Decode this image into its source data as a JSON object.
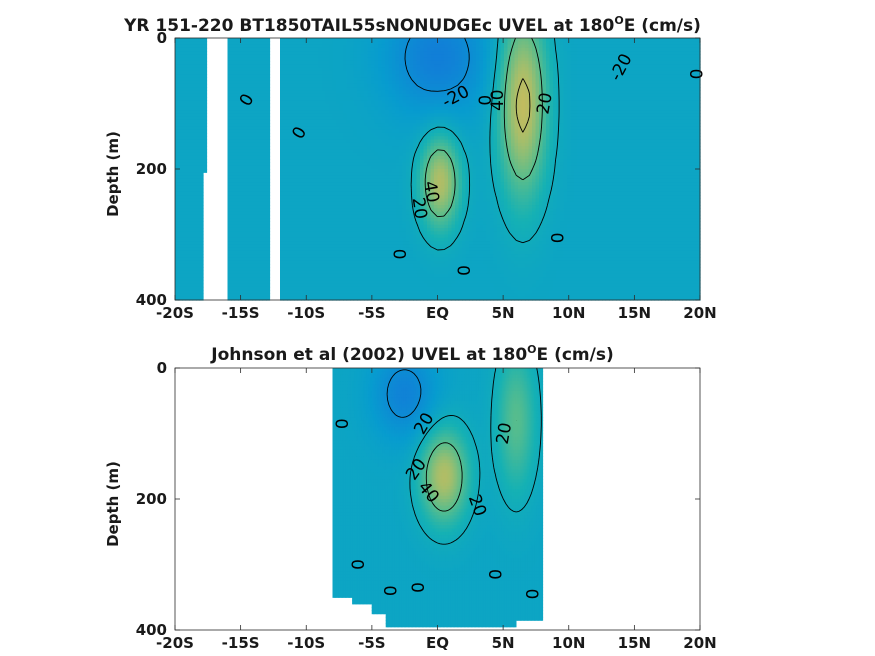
{
  "chart_data": [
    {
      "type": "heatmap",
      "title_main": "YR 151-220 BT1850TAIL55sNONUDGEc UVEL at 180",
      "title_sup": "O",
      "title_end": "E (cm/s)",
      "ylabel": "Depth (m)",
      "xlim": [
        -20,
        20
      ],
      "ylim": [
        0,
        400
      ],
      "y_reversed": true,
      "x_ticks": [
        -20,
        -15,
        -10,
        -5,
        0,
        5,
        10,
        15,
        20
      ],
      "x_tick_labels": [
        "-20S",
        "-15S",
        "-10S",
        "-5S",
        "EQ",
        "5N",
        "10N",
        "15N",
        "20N"
      ],
      "y_ticks": [
        0,
        200,
        400
      ],
      "y_tick_labels": [
        "0",
        "200",
        "400"
      ],
      "data_coverage": {
        "lat_range": [
          -20,
          20
        ],
        "gaps_lat": [
          [
            -17.5,
            -15.9
          ],
          [
            -12.9,
            -12.1
          ]
        ],
        "gap_depth_ranges": [
          [
            0,
            400
          ],
          [
            0,
            400
          ]
        ],
        "gap_lower_start_lat": -17.9,
        "gap_lower_start_depth": 205
      },
      "background_value": -5,
      "features": [
        {
          "name": "south-equatorial-current",
          "center": [
            0,
            30
          ],
          "amplitude": -22,
          "width": [
            4,
            90
          ]
        },
        {
          "name": "north-equatorial-countercurrent",
          "center": [
            6.5,
            100
          ],
          "amplitude": 50,
          "width": [
            1.8,
            140
          ]
        },
        {
          "name": "equatorial-undercurrent",
          "center": [
            0.2,
            220
          ],
          "amplitude": 45,
          "width": [
            1.5,
            70
          ]
        }
      ],
      "contour_labels": [
        {
          "text": "0",
          "lat": -14.5,
          "depth": 95,
          "angle": -60
        },
        {
          "text": "0",
          "lat": -10.5,
          "depth": 145,
          "angle": -60
        },
        {
          "text": "-20",
          "lat": 1.4,
          "depth": 90,
          "angle": -28
        },
        {
          "text": "0",
          "lat": 3.7,
          "depth": 95,
          "angle": -90
        },
        {
          "text": "40",
          "lat": 4.6,
          "depth": 95,
          "angle": -90
        },
        {
          "text": "20",
          "lat": 8.2,
          "depth": 100,
          "angle": -80
        },
        {
          "text": "-20",
          "lat": 14,
          "depth": 45,
          "angle": -62
        },
        {
          "text": "0",
          "lat": 19.8,
          "depth": 55,
          "angle": -90
        },
        {
          "text": "40",
          "lat": -0.5,
          "depth": 235,
          "angle": 80
        },
        {
          "text": "20",
          "lat": -1.4,
          "depth": 260,
          "angle": 82
        },
        {
          "text": "0",
          "lat": -2.8,
          "depth": 330,
          "angle": -90
        },
        {
          "text": "0",
          "lat": 2.1,
          "depth": 355,
          "angle": -90
        },
        {
          "text": "0",
          "lat": 9.2,
          "depth": 305,
          "angle": -90
        }
      ]
    },
    {
      "type": "heatmap",
      "title_main": "Johnson et al (2002) UVEL at 180",
      "title_sup": "O",
      "title_end": "E (cm/s)",
      "ylabel": "Depth (m)",
      "xlim": [
        -20,
        20
      ],
      "ylim": [
        0,
        400
      ],
      "y_reversed": true,
      "x_ticks": [
        -20,
        -15,
        -10,
        -5,
        0,
        5,
        10,
        15,
        20
      ],
      "x_tick_labels": [
        "-20S",
        "-15S",
        "-10S",
        "-5S",
        "EQ",
        "5N",
        "10N",
        "15N",
        "20N"
      ],
      "y_ticks": [
        0,
        200,
        400
      ],
      "y_tick_labels": [
        "0",
        "200",
        "400"
      ],
      "data_coverage": {
        "lat_range": [
          -8,
          8
        ],
        "bottom_cutoff": [
          [
            -8,
            335
          ],
          [
            -6.5,
            350
          ],
          [
            -5,
            360
          ],
          [
            -4,
            375
          ],
          [
            -3,
            395
          ],
          [
            5,
            395
          ],
          [
            6,
            385
          ],
          [
            8,
            370
          ]
        ]
      },
      "background_value": -5,
      "features": [
        {
          "name": "south-equatorial-current",
          "center": [
            -2.5,
            40
          ],
          "amplitude": -20,
          "width": [
            2.5,
            70
          ]
        },
        {
          "name": "equatorial-undercurrent",
          "center": [
            0.5,
            165
          ],
          "amplitude": 45,
          "width": [
            1.8,
            70
          ]
        },
        {
          "name": "north-equatorial-countercurrent",
          "center": [
            6,
            80
          ],
          "amplitude": 25,
          "width": [
            1.5,
            110
          ]
        }
      ],
      "contour_labels": [
        {
          "text": "0",
          "lat": -7.2,
          "depth": 85,
          "angle": -90
        },
        {
          "text": "20",
          "lat": -1.0,
          "depth": 85,
          "angle": -60
        },
        {
          "text": "20",
          "lat": 5.1,
          "depth": 100,
          "angle": -80
        },
        {
          "text": "20",
          "lat": -1.6,
          "depth": 155,
          "angle": -55
        },
        {
          "text": "40",
          "lat": -0.7,
          "depth": 190,
          "angle": 50
        },
        {
          "text": "20",
          "lat": 3.0,
          "depth": 210,
          "angle": 70
        },
        {
          "text": "0",
          "lat": -6.0,
          "depth": 300,
          "angle": -90
        },
        {
          "text": "0",
          "lat": -3.5,
          "depth": 340,
          "angle": -90
        },
        {
          "text": "0",
          "lat": -1.4,
          "depth": 335,
          "angle": -90
        },
        {
          "text": "0",
          "lat": 4.5,
          "depth": 315,
          "angle": -90
        },
        {
          "text": "0",
          "lat": 7.3,
          "depth": 345,
          "angle": -90
        }
      ]
    }
  ]
}
